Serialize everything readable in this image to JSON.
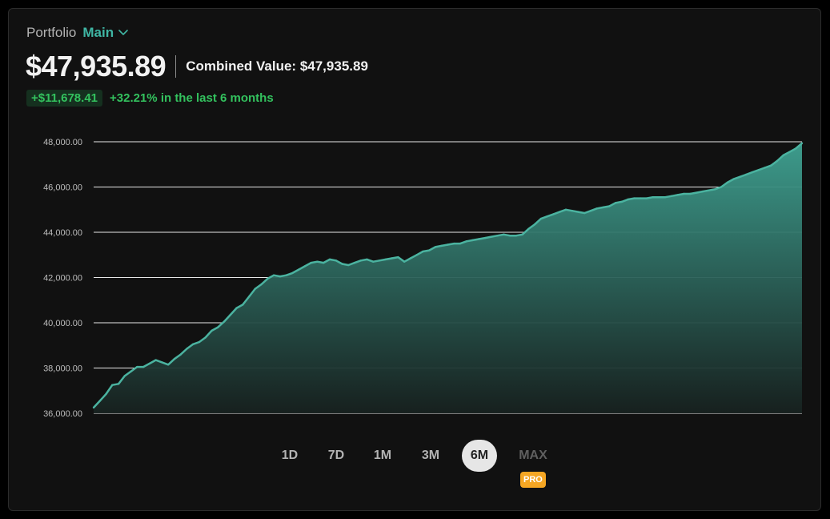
{
  "header": {
    "portfolio_label": "Portfolio",
    "portfolio_name": "Main",
    "total_value": "$47,935.89",
    "combined_value": "Combined Value: $47,935.89",
    "change_amount": "+$11,678.41",
    "change_percent": "+32.21% in the last 6 months"
  },
  "range_selector": {
    "options": [
      "1D",
      "7D",
      "1M",
      "3M",
      "6M",
      "MAX"
    ],
    "selected": "6M",
    "pro_badge": "PRO",
    "icon": "chevron-down-icon"
  },
  "colors": {
    "background": "#111111",
    "accent": "#3fb6a4",
    "line": "#4bb3a0",
    "positive": "#33c25e",
    "pro_badge": "#f5a623",
    "gridline": "#e6e6e6"
  },
  "chart_data": {
    "type": "area",
    "title": "",
    "xlabel": "",
    "ylabel": "",
    "ylim": [
      36000,
      48000
    ],
    "yticks": [
      "36,000.00",
      "38,000.00",
      "40,000.00",
      "42,000.00",
      "44,000.00",
      "46,000.00",
      "48,000.00"
    ],
    "ytick_values": [
      36000,
      38000,
      40000,
      42000,
      44000,
      46000,
      48000
    ],
    "grid": true,
    "legend": "none",
    "series": [
      {
        "values": [
          36250,
          36550,
          36850,
          37250,
          37300,
          37650,
          37850,
          38050,
          38050,
          38200,
          38350,
          38250,
          38150,
          38400,
          38600,
          38850,
          39050,
          39150,
          39350,
          39650,
          39800,
          40050,
          40350,
          40650,
          40800,
          41150,
          41500,
          41700,
          41950,
          42100,
          42050,
          42100,
          42200,
          42350,
          42500,
          42650,
          42700,
          42650,
          42800,
          42750,
          42600,
          42550,
          42650,
          42750,
          42800,
          42700,
          42750,
          42800,
          42850,
          42900,
          42700,
          42850,
          43000,
          43150,
          43200,
          43350,
          43400,
          43450,
          43500,
          43500,
          43600,
          43650,
          43700,
          43750,
          43800,
          43850,
          43900,
          43850,
          43850,
          43900,
          44150,
          44350,
          44600,
          44700,
          44800,
          44900,
          45000,
          44950,
          44900,
          44850,
          44950,
          45050,
          45100,
          45150,
          45300,
          45350,
          45450,
          45500,
          45500,
          45500,
          45550,
          45550,
          45550,
          45600,
          45650,
          45700,
          45700,
          45750,
          45800,
          45850,
          45900,
          46000,
          46200,
          46350,
          46450,
          46550,
          46650,
          46750,
          46850,
          46950,
          47150,
          47400,
          47550,
          47700,
          47936
        ]
      }
    ]
  }
}
